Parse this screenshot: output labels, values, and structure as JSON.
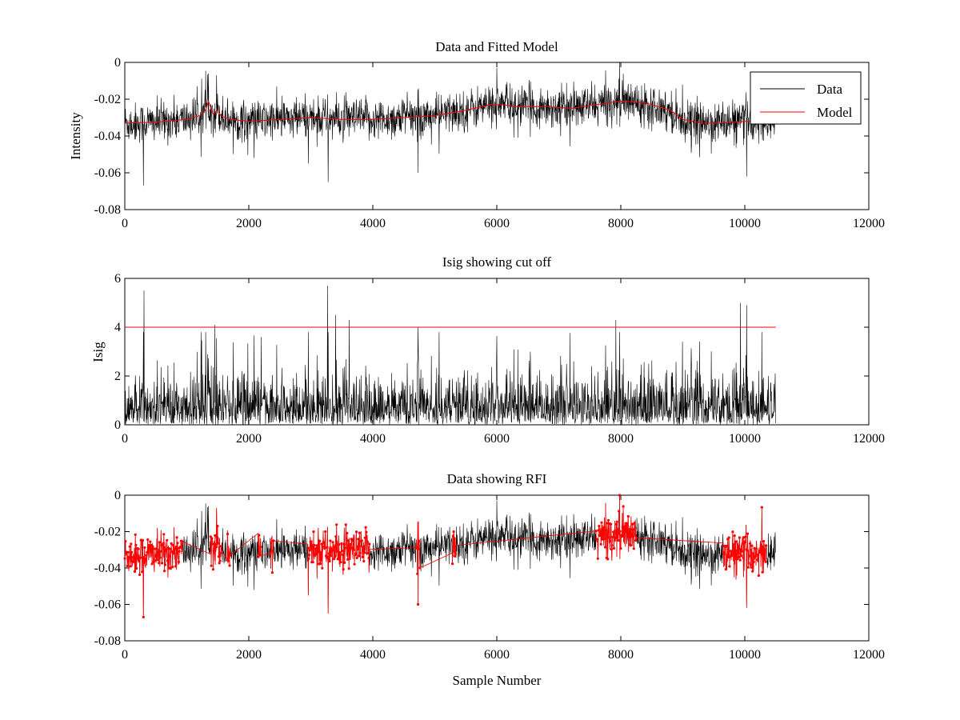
{
  "colors": {
    "data": "#000000",
    "model": "#ff0000",
    "cutoff": "#ff0000",
    "rfi": "#ff0000"
  },
  "chart_data": [
    {
      "type": "line",
      "title": "Data and Fitted Model",
      "xlabel": "",
      "ylabel": "Intensity",
      "xlim": [
        0,
        12000
      ],
      "ylim": [
        -0.08,
        0
      ],
      "xticks": [
        0,
        2000,
        4000,
        6000,
        8000,
        10000,
        12000
      ],
      "xtick_labels": [
        "0",
        "2000",
        "4000",
        "6000",
        "8000",
        "10000",
        "12000"
      ],
      "yticks": [
        -0.08,
        -0.06,
        -0.04,
        -0.02,
        0
      ],
      "ytick_labels": [
        "-0.08",
        "-0.06",
        "-0.04",
        "-0.02",
        "0"
      ],
      "n_samples": 10500,
      "legend": [
        "Data",
        "Model"
      ],
      "legend_location": "top-right",
      "series": [
        {
          "name": "Model",
          "x": [
            0,
            500,
            1000,
            1200,
            1300,
            1350,
            1380,
            1420,
            1500,
            1550,
            1700,
            2000,
            2500,
            3000,
            3500,
            4000,
            4500,
            5000,
            5500,
            5900,
            6100,
            6300,
            6800,
            7200,
            7600,
            8000,
            8400,
            8800,
            9000,
            9300,
            9600,
            10000,
            10500
          ],
          "y": [
            -0.033,
            -0.0325,
            -0.031,
            -0.029,
            -0.026,
            -0.021,
            -0.024,
            -0.028,
            -0.026,
            -0.029,
            -0.031,
            -0.032,
            -0.031,
            -0.03,
            -0.031,
            -0.031,
            -0.03,
            -0.029,
            -0.026,
            -0.023,
            -0.023,
            -0.024,
            -0.024,
            -0.025,
            -0.023,
            -0.021,
            -0.022,
            -0.026,
            -0.031,
            -0.033,
            -0.033,
            -0.032,
            -0.032
          ]
        }
      ],
      "data_noise_sigma": 0.0055,
      "data_spikes": [
        {
          "x": 300,
          "y": -0.067
        },
        {
          "x": 1350,
          "y": -0.006
        },
        {
          "x": 1480,
          "y": -0.007
        },
        {
          "x": 3280,
          "y": -0.065
        },
        {
          "x": 4730,
          "y": -0.06
        },
        {
          "x": 6000,
          "y": -0.003
        },
        {
          "x": 7980,
          "y": 0.0
        },
        {
          "x": 10030,
          "y": -0.062
        }
      ]
    },
    {
      "type": "line",
      "title": "Isig showing cut off",
      "xlabel": "",
      "ylabel": "Isig",
      "xlim": [
        0,
        12000
      ],
      "ylim": [
        0,
        6
      ],
      "xticks": [
        0,
        2000,
        4000,
        6000,
        8000,
        10000,
        12000
      ],
      "xtick_labels": [
        "0",
        "2000",
        "4000",
        "6000",
        "8000",
        "10000",
        "12000"
      ],
      "yticks": [
        0,
        2,
        4,
        6
      ],
      "ytick_labels": [
        "0",
        "2",
        "4",
        "6"
      ],
      "n_samples": 10500,
      "cutoff": 4,
      "isig_spikes": [
        {
          "x": 310,
          "y": 5.5
        },
        {
          "x": 1450,
          "y": 4.1
        },
        {
          "x": 2200,
          "y": 3.6
        },
        {
          "x": 3270,
          "y": 5.7
        },
        {
          "x": 3400,
          "y": 4.5
        },
        {
          "x": 3620,
          "y": 4.3
        },
        {
          "x": 4730,
          "y": 4.0
        },
        {
          "x": 7920,
          "y": 4.3
        },
        {
          "x": 9930,
          "y": 5.0
        },
        {
          "x": 10030,
          "y": 4.9
        }
      ]
    },
    {
      "type": "scatter",
      "title": "Data showing RFI",
      "xlabel": "Sample Number",
      "ylabel": "",
      "xlim": [
        0,
        12000
      ],
      "ylim": [
        -0.08,
        0
      ],
      "xticks": [
        0,
        2000,
        4000,
        6000,
        8000,
        10000,
        12000
      ],
      "xtick_labels": [
        "0",
        "2000",
        "4000",
        "6000",
        "8000",
        "10000",
        "12000"
      ],
      "yticks": [
        -0.08,
        -0.06,
        -0.04,
        -0.02,
        0
      ],
      "ytick_labels": [
        "-0.08",
        "-0.06",
        "-0.04",
        "-0.02",
        "0"
      ],
      "n_samples": 10500,
      "rfi_regions": [
        [
          0,
          930
        ],
        [
          1380,
          1560
        ],
        [
          1650,
          1700
        ],
        [
          2150,
          2200
        ],
        [
          2350,
          2400
        ],
        [
          2950,
          3950
        ],
        [
          4700,
          4760
        ],
        [
          5280,
          5340
        ],
        [
          7600,
          8250
        ],
        [
          9650,
          10350
        ]
      ]
    }
  ]
}
